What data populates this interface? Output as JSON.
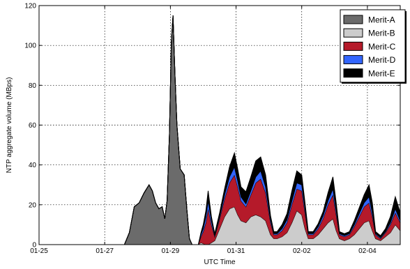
{
  "chart_data": {
    "type": "area",
    "stacked": true,
    "title": "",
    "xlabel": "UTC Time",
    "ylabel": "NTP aggregate volume (MBps)",
    "xlim": [
      0,
      11
    ],
    "ylim": [
      0,
      120
    ],
    "grid": true,
    "legend_position": "top-right",
    "x_tick_labels": [
      "01-25",
      "01-27",
      "01-29",
      "01-31",
      "02-02",
      "02-04"
    ],
    "x_tick_values": [
      0,
      2,
      4,
      6,
      8,
      10
    ],
    "y_ticks": [
      0,
      20,
      40,
      60,
      80,
      100,
      120
    ],
    "x": [
      0,
      0.5,
      1,
      1.5,
      2,
      2.5,
      2.6,
      2.75,
      2.9,
      3.05,
      3.2,
      3.35,
      3.45,
      3.55,
      3.65,
      3.75,
      3.83,
      3.9,
      3.97,
      4.03,
      4.08,
      4.14,
      4.2,
      4.3,
      4.42,
      4.5,
      4.58,
      4.66,
      4.75,
      4.85,
      4.93,
      5.0,
      5.08,
      5.15,
      5.25,
      5.35,
      5.5,
      5.65,
      5.8,
      5.95,
      6.05,
      6.15,
      6.3,
      6.45,
      6.6,
      6.75,
      6.9,
      7.05,
      7.15,
      7.25,
      7.4,
      7.55,
      7.7,
      7.85,
      8.0,
      8.1,
      8.2,
      8.35,
      8.5,
      8.65,
      8.8,
      8.95,
      9.05,
      9.15,
      9.3,
      9.45,
      9.6,
      9.75,
      9.9,
      10.05,
      10.15,
      10.25,
      10.4,
      10.55,
      10.7,
      10.85,
      11.0
    ],
    "series": [
      {
        "name": "Merit-A",
        "color": "#6b6b6b",
        "values": [
          0,
          0,
          0,
          0,
          0,
          0,
          0,
          6,
          19,
          21,
          26,
          30,
          27,
          21,
          18,
          19,
          13,
          22,
          55,
          102,
          115,
          85,
          60,
          38,
          35,
          18,
          3,
          0,
          0,
          0,
          0,
          0,
          0,
          0,
          0,
          0,
          0,
          0,
          0,
          0,
          0,
          0,
          0,
          0,
          0,
          0,
          0,
          0,
          0,
          0,
          0,
          0,
          0,
          0,
          0,
          0,
          0,
          0,
          0,
          0,
          0,
          0,
          0,
          0,
          0,
          0,
          0,
          0,
          0,
          0,
          0,
          0,
          0,
          0,
          0,
          0,
          0
        ]
      },
      {
        "name": "Merit-B",
        "color": "#cccccc",
        "values": [
          0,
          0,
          0,
          0,
          0,
          0,
          0,
          0,
          0,
          0,
          0,
          0,
          0,
          0,
          0,
          0,
          0,
          0,
          0,
          0,
          0,
          0,
          0,
          0,
          0,
          0,
          0,
          0,
          0,
          0,
          1,
          0.5,
          0,
          0,
          1,
          2,
          8,
          14,
          18,
          19,
          15,
          12,
          11,
          14,
          15,
          14,
          12,
          5,
          3,
          3,
          4,
          6,
          11,
          17,
          15,
          8,
          3,
          3,
          5,
          8,
          11,
          13,
          7,
          3,
          2,
          3,
          5,
          8,
          11,
          12,
          7,
          3,
          2,
          4,
          6,
          10,
          7
        ]
      },
      {
        "name": "Merit-C",
        "color": "#b51a2a",
        "values": [
          0,
          0,
          0,
          0,
          0,
          0,
          0,
          0,
          0,
          0,
          0,
          0,
          0,
          0,
          0,
          0,
          0,
          0,
          0,
          0,
          0,
          0,
          0,
          0,
          0,
          0,
          0,
          0,
          0,
          0,
          3,
          6,
          11,
          18,
          9,
          2,
          5,
          9,
          13,
          16,
          14,
          10,
          8,
          11,
          16,
          19,
          14,
          6,
          2,
          2,
          3,
          5,
          9,
          11,
          12,
          8,
          2,
          2,
          3,
          5,
          9,
          12,
          8,
          2,
          2,
          2,
          4,
          6,
          8,
          9,
          7,
          2,
          1,
          2,
          4,
          6,
          4
        ]
      },
      {
        "name": "Merit-D",
        "color": "#3366ff",
        "values": [
          0,
          0,
          0,
          0,
          0,
          0,
          0,
          0,
          0,
          0,
          0,
          0,
          0,
          0,
          0,
          0,
          0,
          0,
          0,
          0,
          0,
          0,
          0,
          0,
          0,
          0,
          0,
          0,
          0,
          0,
          1,
          1.5,
          3,
          4,
          2,
          0.5,
          1,
          2,
          3,
          4,
          3,
          2,
          1.5,
          2,
          3,
          4,
          3,
          1.5,
          0.5,
          0.5,
          1,
          1.5,
          2,
          3,
          3,
          2,
          0.5,
          0.5,
          1,
          1.5,
          2,
          3,
          2,
          0.5,
          0.5,
          0.5,
          1,
          1.5,
          2,
          3,
          2,
          0.5,
          0.5,
          0.5,
          1,
          2,
          1
        ]
      },
      {
        "name": "Merit-E",
        "color": "#000000",
        "values": [
          0,
          0,
          0,
          0,
          0,
          0,
          0,
          0,
          0,
          0,
          0,
          0,
          0,
          0,
          0,
          0,
          0,
          0,
          0,
          0,
          0,
          0,
          0,
          0,
          0,
          0,
          0,
          0,
          0,
          0,
          1,
          2,
          3,
          5,
          2,
          1,
          2,
          3,
          5,
          7,
          6,
          5,
          6,
          7,
          8,
          7,
          6,
          2,
          1,
          1,
          2,
          3,
          5,
          6,
          5,
          3,
          1,
          1,
          1.5,
          2,
          4,
          6,
          4,
          1,
          1,
          1,
          2,
          3,
          4,
          6,
          5,
          1,
          1,
          1.5,
          3,
          6,
          4
        ]
      }
    ]
  }
}
